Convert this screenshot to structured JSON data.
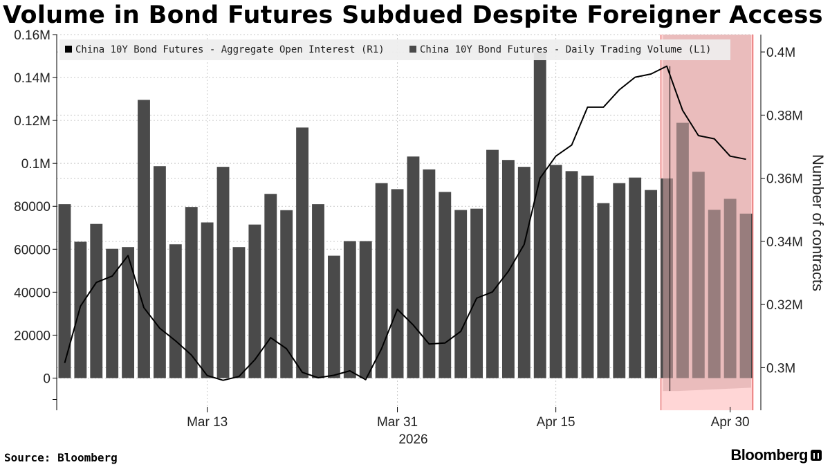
{
  "title": "Volume in Bond Futures Subdued Despite Foreigner Access",
  "source": "Source: Bloomberg",
  "brand": "Bloomberg",
  "colors": {
    "bars": "#4a4a4a",
    "line": "#000000",
    "highlight_fill": "#d9a7a7",
    "highlight_edge": "#e05a5a",
    "highlight_band": "#ffd6d6",
    "grid": "#c8c8c8",
    "legend_bg": "#eeeeee"
  },
  "chart_data": {
    "type": "bar",
    "legend": [
      {
        "label": "China 10Y Bond Futures - Aggregate Open Interest (R1)",
        "swatch": "#000000"
      },
      {
        "label": "China 10Y Bond Futures - Daily Trading Volume  (L1)",
        "swatch": "#4a4a4a"
      }
    ],
    "legend_position": "top",
    "y_left": {
      "min": -15000,
      "max": 160000,
      "ticks": [
        0,
        20000,
        40000,
        60000,
        80000,
        100000,
        120000,
        140000,
        160000
      ],
      "tick_labels": [
        "0",
        "20000",
        "40000",
        "60000",
        "80000",
        "0.1M",
        "0.12M",
        "0.14M",
        "0.16M"
      ]
    },
    "y_right": {
      "min": 0.2865,
      "max": 0.4055,
      "ticks": [
        0.3,
        0.32,
        0.34,
        0.36,
        0.38,
        0.4
      ],
      "tick_labels": [
        "0.3M",
        "0.32M",
        "0.34M",
        "0.36M",
        "0.38M",
        "0.4M"
      ],
      "label": "Number of contracts"
    },
    "x_ticks": [
      {
        "index": 9,
        "label": "Mar 13"
      },
      {
        "index": 21,
        "label": "Mar 31"
      },
      {
        "index": 31,
        "label": "Apr 15"
      },
      {
        "index": 42,
        "label": "Apr 30"
      }
    ],
    "x_year": {
      "index": 22,
      "label": "2026"
    },
    "grid": true,
    "highlight_from_index": 38,
    "series": [
      {
        "name": "China 10Y Bond Futures - Daily Trading Volume  (L1)",
        "type": "bar",
        "axis": "left",
        "values": [
          81000,
          63500,
          71800,
          60200,
          61000,
          129600,
          98700,
          62300,
          79700,
          72500,
          98400,
          61000,
          71500,
          85800,
          78200,
          116700,
          81000,
          57000,
          63800,
          63800,
          90800,
          88000,
          103200,
          97200,
          86700,
          78300,
          78900,
          106300,
          101600,
          98400,
          151700,
          99300,
          96400,
          94300,
          81500,
          90800,
          93400,
          87600,
          93000,
          118900,
          96100,
          78400,
          83500,
          76600
        ]
      },
      {
        "name": "China 10Y Bond Futures - Aggregate Open Interest (R1)",
        "type": "line",
        "axis": "right",
        "values": [
          0.3015,
          0.3195,
          0.327,
          0.329,
          0.3355,
          0.319,
          0.3125,
          0.3085,
          0.304,
          0.2975,
          0.296,
          0.2972,
          0.3025,
          0.3095,
          0.306,
          0.2985,
          0.2968,
          0.2976,
          0.299,
          0.2962,
          0.306,
          0.3185,
          0.3135,
          0.3075,
          0.3078,
          0.3115,
          0.322,
          0.324,
          0.3305,
          0.339,
          0.36,
          0.367,
          0.3705,
          0.3825,
          0.3825,
          0.388,
          0.392,
          0.393,
          0.3955,
          0.3815,
          0.3735,
          0.3725,
          0.367,
          0.366
        ]
      }
    ]
  }
}
